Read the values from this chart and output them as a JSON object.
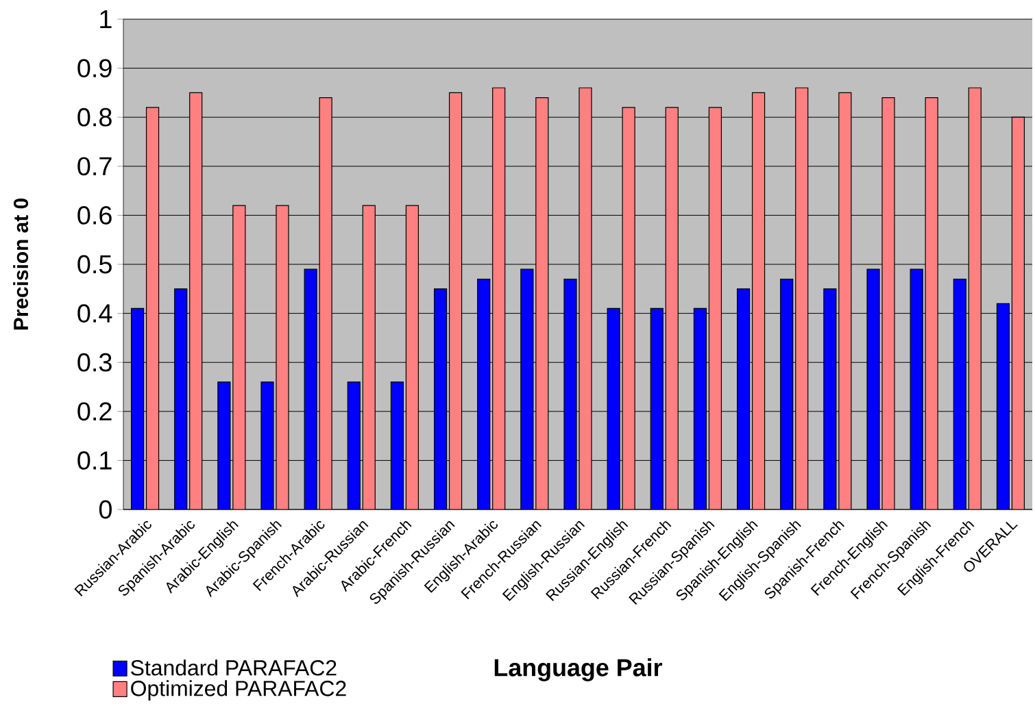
{
  "chart_data": {
    "type": "bar",
    "xlabel": "Language Pair",
    "ylabel": "Precision at 0",
    "categories": [
      "Russian-Arabic",
      "Spanish-Arabic",
      "Arabic-English",
      "Arabic-Spanish",
      "French-Arabic",
      "Arabic-Russian",
      "Arabic-French",
      "Spanish-Russian",
      "English-Arabic",
      "French-Russian",
      "English-Russian",
      "Russian-English",
      "Russian-French",
      "Russian-Spanish",
      "Spanish-English",
      "English-Spanish",
      "Spanish-French",
      "French-English",
      "French-Spanish",
      "English-French",
      "OVERALL"
    ],
    "series": [
      {
        "name": "Standard PARAFAC2",
        "color": "#0000ff",
        "values": [
          0.41,
          0.45,
          0.26,
          0.26,
          0.49,
          0.26,
          0.26,
          0.45,
          0.47,
          0.49,
          0.47,
          0.41,
          0.41,
          0.41,
          0.45,
          0.47,
          0.45,
          0.49,
          0.49,
          0.47,
          0.42
        ]
      },
      {
        "name": "Optimized PARAFAC2",
        "color": "#ff8080",
        "values": [
          0.82,
          0.85,
          0.62,
          0.62,
          0.84,
          0.62,
          0.62,
          0.85,
          0.86,
          0.84,
          0.86,
          0.82,
          0.82,
          0.82,
          0.85,
          0.86,
          0.85,
          0.84,
          0.84,
          0.86,
          0.8
        ]
      }
    ],
    "ylim": [
      0,
      1
    ],
    "yticks": [
      0,
      0.1,
      0.2,
      0.3,
      0.4,
      0.5,
      0.6,
      0.7,
      0.8,
      0.9,
      1
    ],
    "grid": "y",
    "legend": "bottom left"
  }
}
